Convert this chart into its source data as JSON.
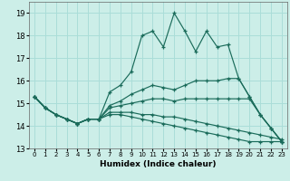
{
  "xlabel": "Humidex (Indice chaleur)",
  "background_color": "#cceee8",
  "grid_color": "#aaddd8",
  "line_color": "#1a6b5a",
  "ylim": [
    13,
    19.5
  ],
  "xlim": [
    -0.5,
    23.5
  ],
  "yticks": [
    13,
    14,
    15,
    16,
    17,
    18,
    19
  ],
  "xticks": [
    0,
    1,
    2,
    3,
    4,
    5,
    6,
    7,
    8,
    9,
    10,
    11,
    12,
    13,
    14,
    15,
    16,
    17,
    18,
    19,
    20,
    21,
    22,
    23
  ],
  "lines": [
    {
      "x": [
        0,
        1,
        2,
        3,
        4,
        5,
        6,
        7,
        8,
        9,
        10,
        11,
        12,
        13,
        14,
        15,
        16,
        17,
        18,
        19,
        20,
        21,
        22,
        23
      ],
      "y": [
        15.3,
        14.8,
        14.5,
        14.3,
        14.1,
        14.3,
        14.3,
        15.5,
        15.8,
        16.4,
        18.0,
        18.2,
        17.5,
        19.0,
        18.2,
        17.3,
        18.2,
        17.5,
        17.6,
        16.1,
        15.3,
        14.5,
        13.9,
        13.3
      ]
    },
    {
      "x": [
        0,
        1,
        2,
        3,
        4,
        5,
        6,
        7,
        8,
        9,
        10,
        11,
        12,
        13,
        14,
        15,
        16,
        17,
        18,
        19,
        20,
        21,
        22,
        23
      ],
      "y": [
        15.3,
        14.8,
        14.5,
        14.3,
        14.1,
        14.3,
        14.3,
        14.9,
        15.1,
        15.4,
        15.6,
        15.8,
        15.7,
        15.6,
        15.8,
        16.0,
        16.0,
        16.0,
        16.1,
        16.1,
        15.3,
        14.5,
        13.9,
        13.3
      ]
    },
    {
      "x": [
        0,
        1,
        2,
        3,
        4,
        5,
        6,
        7,
        8,
        9,
        10,
        11,
        12,
        13,
        14,
        15,
        16,
        17,
        18,
        19,
        20,
        21,
        22,
        23
      ],
      "y": [
        15.3,
        14.8,
        14.5,
        14.3,
        14.1,
        14.3,
        14.3,
        14.8,
        14.9,
        15.0,
        15.1,
        15.2,
        15.2,
        15.1,
        15.2,
        15.2,
        15.2,
        15.2,
        15.2,
        15.2,
        15.2,
        14.5,
        13.9,
        13.3
      ]
    },
    {
      "x": [
        0,
        1,
        2,
        3,
        4,
        5,
        6,
        7,
        8,
        9,
        10,
        11,
        12,
        13,
        14,
        15,
        16,
        17,
        18,
        19,
        20,
        21,
        22,
        23
      ],
      "y": [
        15.3,
        14.8,
        14.5,
        14.3,
        14.1,
        14.3,
        14.3,
        14.6,
        14.6,
        14.6,
        14.5,
        14.5,
        14.4,
        14.4,
        14.3,
        14.2,
        14.1,
        14.0,
        13.9,
        13.8,
        13.7,
        13.6,
        13.5,
        13.4
      ]
    },
    {
      "x": [
        0,
        1,
        2,
        3,
        4,
        5,
        6,
        7,
        8,
        9,
        10,
        11,
        12,
        13,
        14,
        15,
        16,
        17,
        18,
        19,
        20,
        21,
        22,
        23
      ],
      "y": [
        15.3,
        14.8,
        14.5,
        14.3,
        14.1,
        14.3,
        14.3,
        14.5,
        14.5,
        14.4,
        14.3,
        14.2,
        14.1,
        14.0,
        13.9,
        13.8,
        13.7,
        13.6,
        13.5,
        13.4,
        13.3,
        13.3,
        13.3,
        13.3
      ]
    }
  ]
}
